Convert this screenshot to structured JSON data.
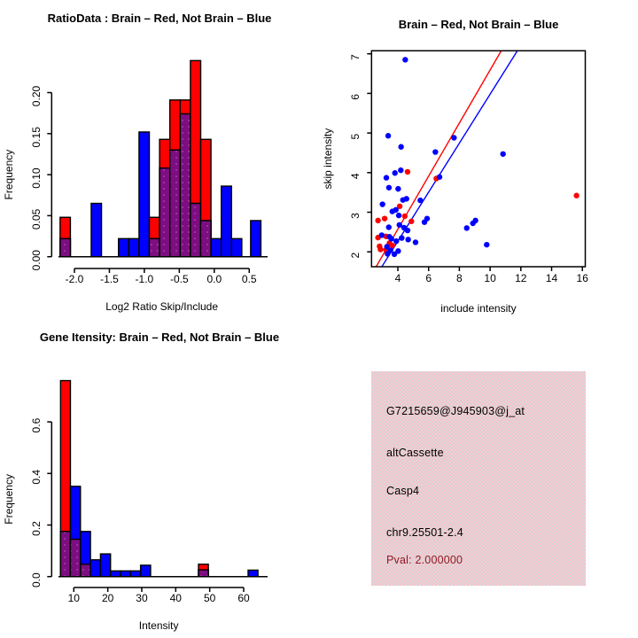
{
  "colors": {
    "red": "#ff0000",
    "blue": "#0000ff",
    "purple": "#7d0e81",
    "purple_dot": "#c873c8",
    "axis": "#000000",
    "pval_red": "#8e1b24",
    "info_bg_pink": "#f8c0cb",
    "info_bg_gray": "#d9d9d9",
    "background": "#ffffff"
  },
  "chart_data": [
    {
      "type": "bar",
      "panel": "hist1",
      "title": "RatioData : Brain – Red, Not Brain – Blue",
      "xlabel": "Log2 Ratio Skip/Include",
      "ylabel": "Frequency",
      "legend_note": "red = Brain, blue = Not Brain, purple = overlap",
      "xlim": [
        -2.33,
        0.84
      ],
      "ylim": [
        0,
        0.245
      ],
      "grid": false,
      "x_tick_vals": [
        -2.0,
        -1.5,
        -1.0,
        -0.5,
        0.0,
        0.5
      ],
      "x_tick_labels": [
        "-2.0",
        "-1.5",
        "-1.0",
        "-0.5",
        "0.0",
        "0.5"
      ],
      "y_tick_vals": [
        0.0,
        0.05,
        0.1,
        0.15,
        0.2
      ],
      "y_tick_labels": [
        "0.00",
        "0.05",
        "0.10",
        "0.15",
        "0.20"
      ],
      "bars": [
        {
          "x0": -2.205,
          "x1": -2.058,
          "blue": 0.022,
          "red": 0.048
        },
        {
          "x0": -1.76,
          "x1": -1.613,
          "blue": 0.065,
          "red": 0
        },
        {
          "x0": -1.37,
          "x1": -1.223,
          "blue": 0.022,
          "red": 0
        },
        {
          "x0": -1.223,
          "x1": -1.076,
          "blue": 0.022,
          "red": 0
        },
        {
          "x0": -1.076,
          "x1": -0.929,
          "blue": 0.152,
          "red": 0
        },
        {
          "x0": -0.929,
          "x1": -0.782,
          "blue": 0.022,
          "red": 0.048
        },
        {
          "x0": -0.782,
          "x1": -0.635,
          "blue": 0.108,
          "red": 0.143
        },
        {
          "x0": -0.635,
          "x1": -0.488,
          "blue": 0.13,
          "red": 0.191
        },
        {
          "x0": -0.488,
          "x1": -0.341,
          "blue": 0.174,
          "red": 0.191
        },
        {
          "x0": -0.341,
          "x1": -0.194,
          "blue": 0.065,
          "red": 0.239
        },
        {
          "x0": -0.194,
          "x1": -0.047,
          "blue": 0.044,
          "red": 0.143
        },
        {
          "x0": -0.047,
          "x1": 0.1,
          "blue": 0.022,
          "red": 0
        },
        {
          "x0": 0.1,
          "x1": 0.247,
          "blue": 0.086,
          "red": 0
        },
        {
          "x0": 0.247,
          "x1": 0.394,
          "blue": 0.022,
          "red": 0
        },
        {
          "x0": 0.52,
          "x1": 0.667,
          "blue": 0.044,
          "red": 0
        }
      ]
    },
    {
      "type": "scatter",
      "panel": "scatter",
      "title": "Brain – Red, Not Brain – Blue",
      "xlabel": "include intensity",
      "ylabel": "skip intensity",
      "xlim": [
        2.29,
        16.17
      ],
      "ylim": [
        1.62,
        7.08
      ],
      "grid": false,
      "x_tick_vals": [
        4,
        6,
        8,
        10,
        12,
        14,
        16
      ],
      "x_tick_labels": [
        "4",
        "6",
        "8",
        "10",
        "12",
        "14",
        "16"
      ],
      "y_tick_vals": [
        2,
        3,
        4,
        5,
        6,
        7
      ],
      "y_tick_labels": [
        "2",
        "3",
        "4",
        "5",
        "6",
        "7"
      ],
      "series": [
        {
          "name": "Brain",
          "color_key": "red",
          "points": [
            [
              4.63,
              4.02
            ],
            [
              6.5,
              3.85
            ],
            [
              15.62,
              3.42
            ],
            [
              4.12,
              3.15
            ],
            [
              4.45,
              2.9
            ],
            [
              4.88,
              2.77
            ],
            [
              3.14,
              2.84
            ],
            [
              2.71,
              2.79
            ],
            [
              3.23,
              2.39
            ],
            [
              2.71,
              2.36
            ],
            [
              3.45,
              2.22
            ],
            [
              3.64,
              2.16
            ],
            [
              2.81,
              2.14
            ],
            [
              3.23,
              2.05
            ],
            [
              2.87,
              2.06
            ]
          ]
        },
        {
          "name": "Not Brain",
          "color_key": "blue",
          "points": [
            [
              4.48,
              6.85
            ],
            [
              3.37,
              4.93
            ],
            [
              4.21,
              4.65
            ],
            [
              7.65,
              4.88
            ],
            [
              6.44,
              4.52
            ],
            [
              10.84,
              4.47
            ],
            [
              4.19,
              4.06
            ],
            [
              3.81,
              3.99
            ],
            [
              3.25,
              3.87
            ],
            [
              6.71,
              3.89
            ],
            [
              3.42,
              3.62
            ],
            [
              4.02,
              3.59
            ],
            [
              4.33,
              3.31
            ],
            [
              4.56,
              3.34
            ],
            [
              5.46,
              3.3
            ],
            [
              3.0,
              3.2
            ],
            [
              3.87,
              3.06
            ],
            [
              3.64,
              3.02
            ],
            [
              4.06,
              2.92
            ],
            [
              5.9,
              2.84
            ],
            [
              5.73,
              2.75
            ],
            [
              9.05,
              2.79
            ],
            [
              8.88,
              2.72
            ],
            [
              8.48,
              2.6
            ],
            [
              4.4,
              2.61
            ],
            [
              4.63,
              2.54
            ],
            [
              4.1,
              2.68
            ],
            [
              3.58,
              2.33
            ],
            [
              3.41,
              2.62
            ],
            [
              4.25,
              2.35
            ],
            [
              4.67,
              2.31
            ],
            [
              5.15,
              2.24
            ],
            [
              9.78,
              2.18
            ],
            [
              3.9,
              2.27
            ],
            [
              2.95,
              2.42
            ],
            [
              3.45,
              2.38
            ],
            [
              3.29,
              2.13
            ],
            [
              3.52,
              2.04
            ],
            [
              4.02,
              2.02
            ],
            [
              3.77,
              1.94
            ],
            [
              3.33,
              1.95
            ]
          ]
        }
      ],
      "fit_lines": [
        {
          "color_key": "red",
          "x1": 2.58,
          "y1": 1.62,
          "x2": 10.73,
          "y2": 7.08
        },
        {
          "color_key": "blue",
          "x1": 2.95,
          "y1": 1.62,
          "x2": 11.78,
          "y2": 7.08
        }
      ]
    },
    {
      "type": "bar",
      "panel": "hist2",
      "title": "Gene Itensity: Brain – Red, Not Brain – Blue",
      "xlabel": "Intensity",
      "ylabel": "Frequency",
      "legend_note": "red = Brain, blue = Not Brain, purple = overlap",
      "xlim": [
        3.6,
        66.5
      ],
      "ylim": [
        0,
        0.78
      ],
      "grid": false,
      "x_tick_vals": [
        10,
        20,
        30,
        40,
        50,
        60
      ],
      "x_tick_labels": [
        "10",
        "20",
        "30",
        "40",
        "50",
        "60"
      ],
      "y_tick_vals": [
        0.0,
        0.2,
        0.4,
        0.6
      ],
      "y_tick_labels": [
        "0.0",
        "0.2",
        "0.4",
        "0.6"
      ],
      "bars": [
        {
          "x0": 6.1,
          "x1": 9.0,
          "blue": 0.175,
          "red": 0.76
        },
        {
          "x0": 9.0,
          "x1": 11.95,
          "blue": 0.35,
          "red": 0.145
        },
        {
          "x0": 11.95,
          "x1": 14.9,
          "blue": 0.175,
          "red": 0.048
        },
        {
          "x0": 14.9,
          "x1": 17.85,
          "blue": 0.065,
          "red": 0
        },
        {
          "x0": 17.85,
          "x1": 20.8,
          "blue": 0.088,
          "red": 0
        },
        {
          "x0": 20.8,
          "x1": 23.75,
          "blue": 0.022,
          "red": 0
        },
        {
          "x0": 23.75,
          "x1": 26.7,
          "blue": 0.022,
          "red": 0
        },
        {
          "x0": 26.7,
          "x1": 29.65,
          "blue": 0.022,
          "red": 0
        },
        {
          "x0": 29.65,
          "x1": 32.6,
          "blue": 0.044,
          "red": 0
        },
        {
          "x0": 46.7,
          "x1": 49.6,
          "blue": 0.026,
          "red": 0.048
        },
        {
          "x0": 61.3,
          "x1": 64.2,
          "blue": 0.025,
          "red": 0
        }
      ]
    }
  ],
  "info_panel": {
    "lines": [
      {
        "text": "G7215659@J945903@j_at",
        "color_key": "black"
      },
      {
        "text": "altCassette",
        "color_key": "black"
      },
      {
        "text": "Casp4",
        "color_key": "black"
      },
      {
        "text": "chr9.25501-2.4",
        "color_key": "black"
      },
      {
        "text": "Pval: 2.000000",
        "color_key": "pval_red"
      }
    ]
  }
}
